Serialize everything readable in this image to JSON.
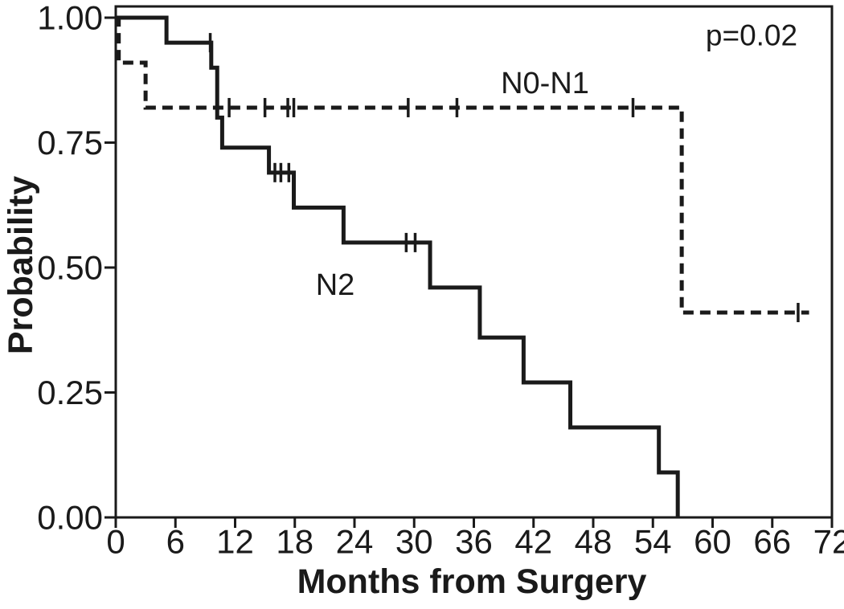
{
  "colors": {
    "ink": "#1a1a1a",
    "background": "#ffffff"
  },
  "chart_data": {
    "type": "line",
    "subtype": "kaplan-meier-step",
    "title": "",
    "xlabel": "Months from Surgery",
    "ylabel": "Probability",
    "xlim": [
      0,
      72
    ],
    "ylim": [
      0,
      1
    ],
    "xticks": [
      0,
      6,
      12,
      18,
      24,
      30,
      36,
      42,
      48,
      54,
      60,
      66,
      72
    ],
    "yticks": [
      0,
      0.25,
      0.5,
      0.75,
      1
    ],
    "ytick_labels": [
      "0.00",
      "0.25",
      "0.50",
      "0.75",
      "1.00"
    ],
    "grid": false,
    "legend_position": "inline-labels",
    "annotation": {
      "text": "p=0.02"
    },
    "series": [
      {
        "name": "N0-N1",
        "line_style": "dashed",
        "color": "#1a1a1a",
        "label": {
          "text": "N0-N1"
        },
        "steps": [
          [
            0.15,
            1.0
          ],
          [
            0.3,
            0.91
          ],
          [
            3.0,
            0.82
          ],
          [
            56.9,
            0.41
          ]
        ],
        "end_month": 69.7,
        "censor_months_probs": [
          [
            11.4,
            0.82
          ],
          [
            15.0,
            0.82
          ],
          [
            17.3,
            0.82
          ],
          [
            17.9,
            0.82
          ],
          [
            29.4,
            0.82
          ],
          [
            34.3,
            0.82
          ],
          [
            52.0,
            0.82
          ],
          [
            68.6,
            0.41
          ]
        ]
      },
      {
        "name": "N2",
        "line_style": "solid",
        "color": "#1a1a1a",
        "label": {
          "text": "N2"
        },
        "steps": [
          [
            0,
            1.0
          ],
          [
            5.1,
            0.95
          ],
          [
            9.6,
            0.9
          ],
          [
            10.2,
            0.8
          ],
          [
            10.7,
            0.74
          ],
          [
            15.4,
            0.69
          ],
          [
            17.9,
            0.62
          ],
          [
            22.9,
            0.55
          ],
          [
            31.6,
            0.46
          ],
          [
            36.6,
            0.36
          ],
          [
            41.0,
            0.27
          ],
          [
            45.7,
            0.18
          ],
          [
            54.6,
            0.09
          ],
          [
            56.5,
            0.0
          ]
        ],
        "end_month": 56.5,
        "censor_months_probs": [
          [
            9.5,
            0.95
          ],
          [
            16.0,
            0.69
          ],
          [
            16.6,
            0.69
          ],
          [
            17.4,
            0.69
          ],
          [
            29.2,
            0.55
          ],
          [
            30.1,
            0.55
          ]
        ]
      }
    ]
  }
}
